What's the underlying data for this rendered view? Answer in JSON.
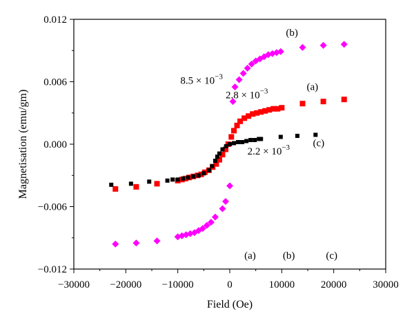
{
  "chart_data": {
    "type": "scatter",
    "xlabel": "Field (Oe)",
    "ylabel": "Magnetisation (emu/gm)",
    "xlim": [
      -30000,
      30000
    ],
    "ylim": [
      -0.012,
      0.012
    ],
    "x_ticks": [
      -30000,
      -20000,
      -10000,
      0,
      10000,
      20000,
      30000
    ],
    "x_tick_labels": [
      "−30000",
      "−20000",
      "−10000",
      "0",
      "10000",
      "20000",
      "30000"
    ],
    "y_ticks": [
      -0.012,
      -0.006,
      0.0,
      0.006,
      0.012
    ],
    "y_tick_labels": [
      "−0.012",
      "−0.006",
      "0.000",
      "0.006",
      "0.012"
    ],
    "grid": false,
    "series": [
      {
        "id": "a",
        "marker": "square",
        "color": "#ff0000",
        "points": [
          [
            -22000,
            -0.0043
          ],
          [
            -18000,
            -0.0041
          ],
          [
            -14000,
            -0.0038
          ],
          [
            -10000,
            -0.0035
          ],
          [
            -9200,
            -0.0034
          ],
          [
            -8500,
            -0.0033
          ],
          [
            -7800,
            -0.0032
          ],
          [
            -7000,
            -0.0031
          ],
          [
            -6200,
            -0.003
          ],
          [
            -5500,
            -0.0029
          ],
          [
            -4800,
            -0.0027
          ],
          [
            -4000,
            -0.0025
          ],
          [
            -3300,
            -0.0022
          ],
          [
            -2600,
            -0.0019
          ],
          [
            -2000,
            -0.0015
          ],
          [
            -1400,
            -0.001
          ],
          [
            -800,
            -0.0005
          ],
          [
            -300,
            0.0
          ],
          [
            300,
            0.0007
          ],
          [
            800,
            0.0013
          ],
          [
            1400,
            0.0018
          ],
          [
            2000,
            0.0022
          ],
          [
            2800,
            0.0025
          ],
          [
            3600,
            0.0027
          ],
          [
            4400,
            0.0029
          ],
          [
            5200,
            0.003
          ],
          [
            6000,
            0.0031
          ],
          [
            6800,
            0.0032
          ],
          [
            7600,
            0.0033
          ],
          [
            8400,
            0.0034
          ],
          [
            9200,
            0.0034
          ],
          [
            10000,
            0.0035
          ],
          [
            14000,
            0.0039
          ],
          [
            18000,
            0.0041
          ],
          [
            22000,
            0.0043
          ]
        ]
      },
      {
        "id": "b",
        "marker": "diamond",
        "color": "#ff00ff",
        "points": [
          [
            -22000,
            -0.0096
          ],
          [
            -18000,
            -0.0095
          ],
          [
            -14000,
            -0.0093
          ],
          [
            -10000,
            -0.0089
          ],
          [
            -9200,
            -0.0088
          ],
          [
            -8400,
            -0.0087
          ],
          [
            -7600,
            -0.0086
          ],
          [
            -6800,
            -0.0085
          ],
          [
            -6000,
            -0.0083
          ],
          [
            -5200,
            -0.0081
          ],
          [
            -4400,
            -0.0078
          ],
          [
            -3600,
            -0.0075
          ],
          [
            -2800,
            -0.007
          ],
          [
            -1400,
            -0.0062
          ],
          [
            -800,
            -0.0055
          ],
          [
            0,
            -0.004
          ],
          [
            600,
            0.0041
          ],
          [
            1000,
            0.0055
          ],
          [
            1800,
            0.0062
          ],
          [
            2600,
            0.0068
          ],
          [
            3400,
            0.0073
          ],
          [
            4200,
            0.0077
          ],
          [
            5000,
            0.008
          ],
          [
            5800,
            0.0082
          ],
          [
            6600,
            0.0084
          ],
          [
            7400,
            0.0086
          ],
          [
            8200,
            0.0087
          ],
          [
            9000,
            0.0088
          ],
          [
            9800,
            0.0089
          ],
          [
            14000,
            0.0093
          ],
          [
            18000,
            0.0095
          ],
          [
            22000,
            0.0096
          ]
        ]
      },
      {
        "id": "c",
        "marker": "square",
        "color": "#000000",
        "points": [
          [
            -22800,
            -0.0039
          ],
          [
            -19000,
            -0.0038
          ],
          [
            -15500,
            -0.0036
          ],
          [
            -12000,
            -0.0035
          ],
          [
            -11000,
            -0.0034
          ],
          [
            -10000,
            -0.0034
          ],
          [
            -9000,
            -0.0033
          ],
          [
            -8000,
            -0.0032
          ],
          [
            -7000,
            -0.0031
          ],
          [
            -6000,
            -0.003
          ],
          [
            -5000,
            -0.0028
          ],
          [
            -4000,
            -0.0025
          ],
          [
            -3400,
            -0.0021
          ],
          [
            -2800,
            -0.0016
          ],
          [
            -2400,
            -0.0012
          ],
          [
            -2000,
            -0.0009
          ],
          [
            -1400,
            -0.0005
          ],
          [
            -700,
            -0.0002
          ],
          [
            0,
            0.0
          ],
          [
            800,
            0.0001
          ],
          [
            1600,
            0.0002
          ],
          [
            2400,
            0.0002
          ],
          [
            3200,
            0.0003
          ],
          [
            4000,
            0.0004
          ],
          [
            4800,
            0.0004
          ],
          [
            5600,
            0.0005
          ],
          [
            6000,
            0.0005
          ],
          [
            9800,
            0.0007
          ],
          [
            13000,
            0.0008
          ],
          [
            16500,
            0.0009
          ]
        ]
      }
    ],
    "annotations": [
      {
        "id": "b-label",
        "text": "(b)",
        "x": 10800,
        "y": 0.0104
      },
      {
        "id": "a-label",
        "text": "(a)",
        "x": 14800,
        "y": 0.0052
      },
      {
        "id": "c-label",
        "text": "(c)",
        "x": 16000,
        "y": -0.0002
      },
      {
        "id": "b-value",
        "base": "8.5 × 10",
        "exp": "−3",
        "x": -9500,
        "y": 0.0058
      },
      {
        "id": "a-value",
        "base": "2.8 × 10",
        "exp": "−3",
        "x": -800,
        "y": 0.0044
      },
      {
        "id": "c-value",
        "base": "2.2 × 10",
        "exp": "−3",
        "x": 3400,
        "y": -0.001
      },
      {
        "id": "a-bottom",
        "text": "(a)",
        "x": 2800,
        "y": -0.011
      },
      {
        "id": "b-bottom",
        "text": "(b)",
        "x": 10200,
        "y": -0.011
      },
      {
        "id": "c-bottom",
        "text": "(c)",
        "x": 18500,
        "y": -0.011
      }
    ]
  }
}
